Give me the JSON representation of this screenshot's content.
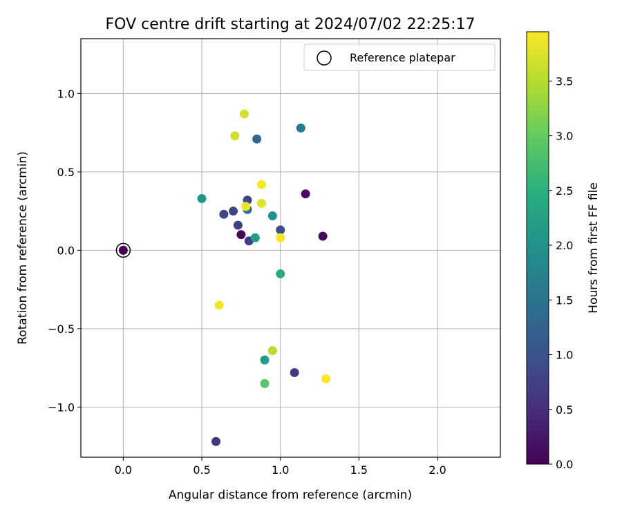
{
  "chart_data": {
    "type": "scatter",
    "title": "FOV centre drift starting at 2024/07/02 22:25:17",
    "xlabel": "Angular distance from reference (arcmin)",
    "ylabel": "Rotation from reference (arcmin)",
    "xlim": [
      -0.27,
      2.4
    ],
    "ylim": [
      -1.32,
      1.35
    ],
    "x_ticks": [
      0.0,
      0.5,
      1.0,
      1.5,
      2.0
    ],
    "x_tick_labels": [
      "0.0",
      "0.5",
      "1.0",
      "1.5",
      "2.0"
    ],
    "y_ticks": [
      -1.0,
      -0.5,
      0.0,
      0.5,
      1.0
    ],
    "y_tick_labels": [
      "−1.0",
      "−0.5",
      "0.0",
      "0.5",
      "1.0"
    ],
    "grid": true,
    "legend": {
      "position": "top-right",
      "entries": [
        "Reference platepar"
      ]
    },
    "colorbar": {
      "label": "Hours from first FF file",
      "min": 0.0,
      "max": 3.95,
      "colormap": "viridis",
      "ticks": [
        0.0,
        0.5,
        1.0,
        1.5,
        2.0,
        2.5,
        3.0,
        3.5
      ],
      "tick_labels": [
        "0.0",
        "0.5",
        "1.0",
        "1.5",
        "2.0",
        "2.5",
        "3.0",
        "3.5"
      ]
    },
    "reference_point": {
      "x": 0.0,
      "y": 0.0,
      "hours": 0.0
    },
    "points": [
      {
        "x": 0.0,
        "y": 0.0,
        "hours": 0.0
      },
      {
        "x": 0.75,
        "y": 0.1,
        "hours": 0.1
      },
      {
        "x": 1.16,
        "y": 0.36,
        "hours": 0.15
      },
      {
        "x": 1.27,
        "y": 0.09,
        "hours": 0.1
      },
      {
        "x": 0.59,
        "y": -1.22,
        "hours": 0.6
      },
      {
        "x": 1.09,
        "y": -0.78,
        "hours": 0.65
      },
      {
        "x": 0.8,
        "y": 0.06,
        "hours": 0.7
      },
      {
        "x": 0.73,
        "y": 0.16,
        "hours": 0.75
      },
      {
        "x": 0.64,
        "y": 0.23,
        "hours": 0.85
      },
      {
        "x": 0.7,
        "y": 0.25,
        "hours": 0.85
      },
      {
        "x": 0.79,
        "y": 0.32,
        "hours": 0.85
      },
      {
        "x": 1.0,
        "y": 0.13,
        "hours": 0.95
      },
      {
        "x": 0.85,
        "y": 0.71,
        "hours": 1.35
      },
      {
        "x": 0.79,
        "y": 0.26,
        "hours": 1.5
      },
      {
        "x": 1.13,
        "y": 0.78,
        "hours": 1.6
      },
      {
        "x": 0.95,
        "y": 0.22,
        "hours": 2.0
      },
      {
        "x": 0.5,
        "y": 0.33,
        "hours": 2.1
      },
      {
        "x": 0.84,
        "y": 0.08,
        "hours": 2.2
      },
      {
        "x": 0.9,
        "y": -0.7,
        "hours": 2.2
      },
      {
        "x": 1.0,
        "y": -0.15,
        "hours": 2.4
      },
      {
        "x": 0.9,
        "y": -0.85,
        "hours": 2.9
      },
      {
        "x": 0.95,
        "y": -0.64,
        "hours": 3.5
      },
      {
        "x": 0.71,
        "y": 0.73,
        "hours": 3.65
      },
      {
        "x": 0.77,
        "y": 0.87,
        "hours": 3.7
      },
      {
        "x": 0.88,
        "y": 0.3,
        "hours": 3.75
      },
      {
        "x": 0.78,
        "y": 0.28,
        "hours": 3.85
      },
      {
        "x": 0.88,
        "y": 0.42,
        "hours": 3.9
      },
      {
        "x": 1.0,
        "y": 0.08,
        "hours": 3.92
      },
      {
        "x": 1.29,
        "y": -0.82,
        "hours": 3.95
      },
      {
        "x": 0.61,
        "y": -0.35,
        "hours": 3.88
      }
    ]
  }
}
